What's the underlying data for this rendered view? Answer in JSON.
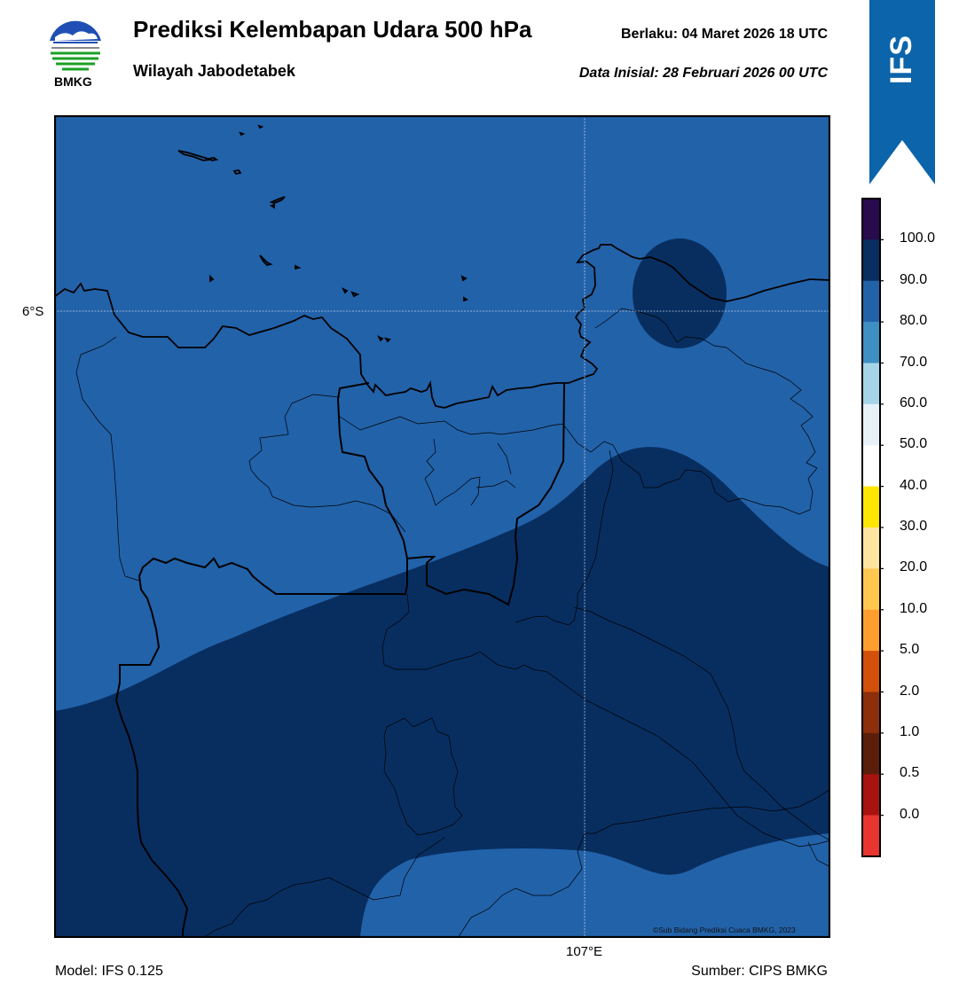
{
  "header": {
    "title": "Prediksi Kelembapan Udara 500 hPa",
    "region": "Wilayah Jabodetabek",
    "valid_time": "Berlaku:  04 Maret 2026 18 UTC",
    "init_time": "Data Inisial:  28 Februari 2026 00 UTC"
  },
  "logo": {
    "text": "BMKG",
    "icon": "bmkg-logo"
  },
  "badge": {
    "text": "IFS",
    "color": "#0c64aa"
  },
  "map": {
    "lat_label": "6°S",
    "lon_label": "107°E",
    "credit": "©Sub Bidang Prediksi Cuaca BMKG, 2023",
    "field_colors": {
      "class_80_90": "#2262a9",
      "class_90_100": "#082e60"
    }
  },
  "footer": {
    "model": "Model: IFS 0.125",
    "source": "Sumber: CIPS BMKG"
  },
  "colorbar": {
    "labels": [
      "100.0",
      "90.0",
      "80.0",
      "70.0",
      "60.0",
      "50.0",
      "40.0",
      "30.0",
      "20.0",
      "10.0",
      "5.0",
      "2.0",
      "1.0",
      "0.5",
      "0.0"
    ],
    "colors": [
      "#2a0a4e",
      "#082e60",
      "#2262a9",
      "#3d8fc4",
      "#a6d5e8",
      "#e6f1f8",
      "#ffffff",
      "#ffe600",
      "#ffe4a0",
      "#ffc750",
      "#ff9d2e",
      "#d2500a",
      "#8c2f0a",
      "#5a1e0a",
      "#a8120f",
      "#e8352f"
    ]
  }
}
